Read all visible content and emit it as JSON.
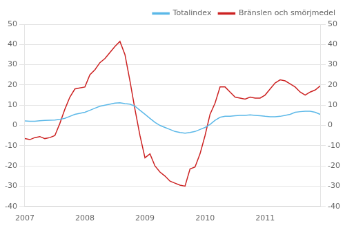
{
  "chart_data": {
    "type": "line",
    "x": [
      2007.0,
      2007.0833,
      2007.1667,
      2007.25,
      2007.3333,
      2007.4167,
      2007.5,
      2007.5833,
      2007.6667,
      2007.75,
      2007.8333,
      2007.9167,
      2008.0,
      2008.0833,
      2008.1667,
      2008.25,
      2008.3333,
      2008.4167,
      2008.5,
      2008.5833,
      2008.6667,
      2008.75,
      2008.8333,
      2008.9167,
      2009.0,
      2009.0833,
      2009.1667,
      2009.25,
      2009.3333,
      2009.4167,
      2009.5,
      2009.5833,
      2009.6667,
      2009.75,
      2009.8333,
      2009.9167,
      2010.0,
      2010.0833,
      2010.1667,
      2010.25,
      2010.3333,
      2010.4167,
      2010.5,
      2010.5833,
      2010.6667,
      2010.75,
      2010.8333,
      2010.9167,
      2011.0,
      2011.0833,
      2011.1667,
      2011.25,
      2011.3333,
      2011.4167,
      2011.5,
      2011.5833,
      2011.6667,
      2011.75,
      2011.8333,
      2011.9167
    ],
    "series": [
      {
        "name": "Totalindex",
        "color": "#5bb8e8",
        "values": [
          2.2,
          2.1,
          2.1,
          2.3,
          2.5,
          2.6,
          2.7,
          3.0,
          3.5,
          4.5,
          5.5,
          6.0,
          6.5,
          7.5,
          8.5,
          9.5,
          10.0,
          10.5,
          11.0,
          11.2,
          10.8,
          10.5,
          9.5,
          7.5,
          5.5,
          3.5,
          1.5,
          0.0,
          -1.0,
          -2.0,
          -3.0,
          -3.5,
          -3.8,
          -3.5,
          -3.0,
          -2.0,
          -1.0,
          0.5,
          2.5,
          4.0,
          4.5,
          4.5,
          4.8,
          5.0,
          5.0,
          5.2,
          5.0,
          4.8,
          4.5,
          4.3,
          4.3,
          4.5,
          5.0,
          5.5,
          6.5,
          6.8,
          7.0,
          7.0,
          6.5,
          5.5
        ]
      },
      {
        "name": "Bränslen och smörjmedel",
        "color": "#cc2222",
        "axis": "y2",
        "values": [
          -6.5,
          -7.0,
          -6.0,
          -5.5,
          -6.5,
          -6.0,
          -5.0,
          1.0,
          8.0,
          14.0,
          18.0,
          18.5,
          19.0,
          25.0,
          27.5,
          31.0,
          33.0,
          36.0,
          39.0,
          41.5,
          35.0,
          22.0,
          8.0,
          -5.0,
          -16.0,
          -14.0,
          -20.0,
          -23.0,
          -25.0,
          -27.5,
          -28.5,
          -29.5,
          -30.0,
          -21.5,
          -20.5,
          -14.0,
          -5.0,
          5.5,
          11.0,
          19.0,
          19.0,
          16.5,
          14.0,
          13.5,
          13.0,
          14.0,
          13.5,
          13.5,
          15.0,
          18.0,
          21.0,
          22.5,
          22.0,
          20.5,
          19.0,
          16.5,
          15.0,
          16.5,
          17.5,
          19.5
        ]
      }
    ],
    "xlim": [
      2007.0,
      2011.9167
    ],
    "xticks": [
      2007,
      2008,
      2009,
      2010,
      2011
    ],
    "ylim": [
      -40,
      50
    ],
    "yticks": [
      -40,
      -30,
      -20,
      -10,
      0,
      10,
      20,
      30,
      40,
      50
    ],
    "y2lim": [
      -40,
      50
    ],
    "y2ticks": [
      -40,
      -30,
      -20,
      -10,
      0,
      10,
      20,
      30,
      40,
      50
    ],
    "grid": true,
    "legend": "upper right"
  }
}
